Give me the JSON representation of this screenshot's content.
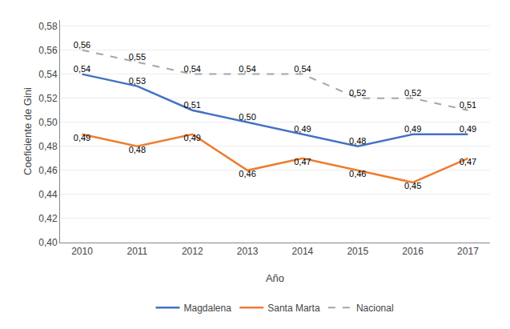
{
  "chart_data": {
    "type": "line",
    "x": [
      2010,
      2011,
      2012,
      2013,
      2014,
      2015,
      2016,
      2017
    ],
    "xlabel": "Año",
    "ylabel": "Coeficiente de Gini",
    "xlim": [
      2009.6,
      2017.4
    ],
    "xticks": [
      2010,
      2011,
      2012,
      2013,
      2014,
      2015,
      2016,
      2017
    ],
    "ylim": [
      0.4,
      0.585
    ],
    "yticks": [
      {
        "value": 0.4,
        "label": "0,40"
      },
      {
        "value": 0.42,
        "label": "0,42"
      },
      {
        "value": 0.44,
        "label": "0,44"
      },
      {
        "value": 0.46,
        "label": "0,46"
      },
      {
        "value": 0.48,
        "label": "0,48"
      },
      {
        "value": 0.5,
        "label": "0,50"
      },
      {
        "value": 0.52,
        "label": "0,52"
      },
      {
        "value": 0.54,
        "label": "0,54"
      },
      {
        "value": 0.56,
        "label": "0,56"
      },
      {
        "value": 0.58,
        "label": "0,58"
      }
    ],
    "grid": true,
    "legend": "bottom",
    "data_labels": true,
    "series": [
      {
        "name": "Magdalena",
        "color": "#4472C4",
        "line_style": "solid",
        "values": [
          0.54,
          0.53,
          0.51,
          0.5,
          0.49,
          0.48,
          0.49,
          0.49
        ],
        "value_labels": [
          "0,54",
          "0,53",
          "0,51",
          "0,50",
          "0,49",
          "0,48",
          "0,49",
          "0,49"
        ]
      },
      {
        "name": "Santa Marta",
        "color": "#ED7D31",
        "line_style": "solid",
        "values": [
          0.49,
          0.48,
          0.49,
          0.46,
          0.47,
          0.46,
          0.45,
          0.47
        ],
        "value_labels": [
          "0,49",
          "0,48",
          "0,49",
          "0,46",
          "0,47",
          "0,46",
          "0,45",
          "0,47"
        ]
      },
      {
        "name": "Nacional",
        "color": "#A6A6A6",
        "line_style": "dashed",
        "values": [
          0.56,
          0.55,
          0.54,
          0.54,
          0.54,
          0.52,
          0.52,
          0.51
        ],
        "value_labels": [
          "0,56",
          "0,55",
          "0,54",
          "0,54",
          "0,54",
          "0,52",
          "0,52",
          "0,51"
        ]
      }
    ]
  }
}
